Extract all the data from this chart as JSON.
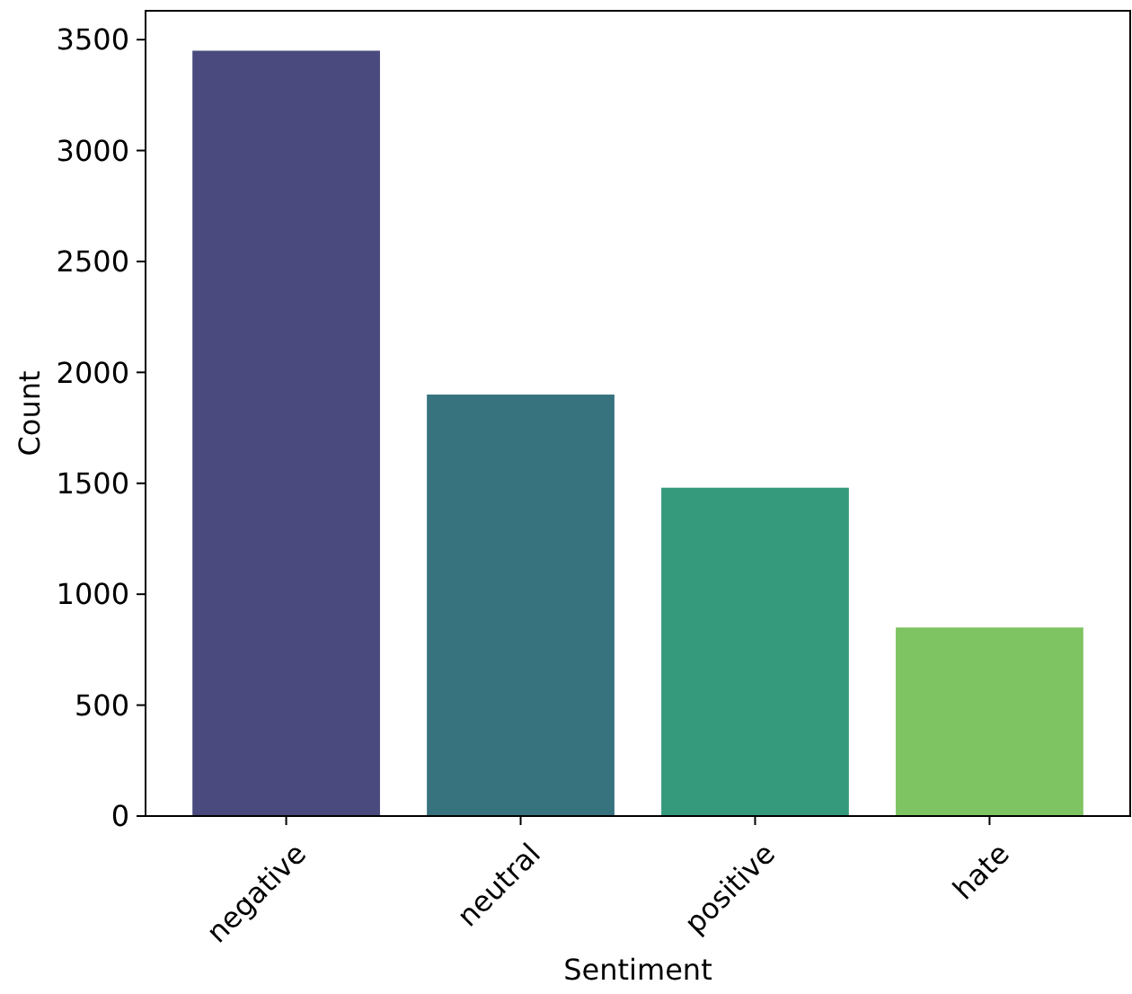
{
  "chart_data": {
    "type": "bar",
    "xlabel": "Sentiment",
    "ylabel": "Count",
    "categories": [
      "negative",
      "neutral",
      "positive",
      "hate"
    ],
    "values": [
      3450,
      1900,
      1480,
      850
    ],
    "colors": [
      "#4a4a7e",
      "#37737f",
      "#35997b",
      "#7fc462"
    ],
    "ylim": [
      0,
      3630
    ],
    "yticks": [
      0,
      500,
      1000,
      1500,
      2000,
      2500,
      3000,
      3500
    ],
    "grid": false
  }
}
